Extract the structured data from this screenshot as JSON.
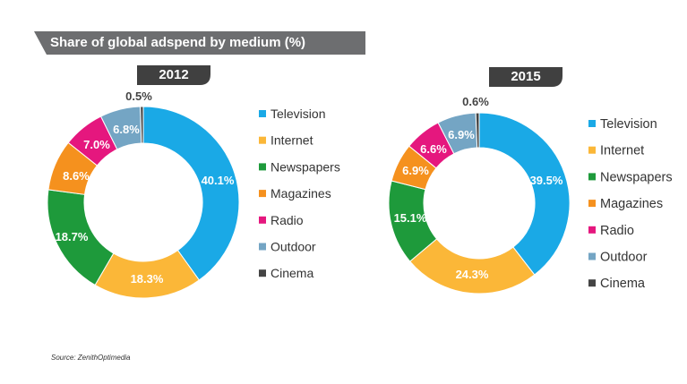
{
  "header": {
    "title": "Share of global adspend by medium (%)",
    "banner_color": "#6d6e70"
  },
  "source": "Source: ZenithOptimedia",
  "chart_data": [
    {
      "type": "pie",
      "variant": "donut",
      "title": "2012",
      "categories": [
        "Television",
        "Internet",
        "Newspapers",
        "Magazines",
        "Radio",
        "Outdoor",
        "Cinema"
      ],
      "values": [
        40.1,
        18.3,
        18.7,
        8.6,
        7.0,
        6.8,
        0.5
      ],
      "labels": [
        "40.1%",
        "18.3%",
        "18.7%",
        "8.6%",
        "7.0%",
        "6.8%",
        "0.5%"
      ],
      "colors": [
        "#1aa9e6",
        "#fbb738",
        "#1e9a3b",
        "#f5911e",
        "#e5177e",
        "#74a5c4",
        "#444444"
      ],
      "legend": "right"
    },
    {
      "type": "pie",
      "variant": "donut",
      "title": "2015",
      "categories": [
        "Television",
        "Internet",
        "Newspapers",
        "Magazines",
        "Radio",
        "Outdoor",
        "Cinema"
      ],
      "values": [
        39.5,
        24.3,
        15.1,
        6.9,
        6.6,
        6.9,
        0.6
      ],
      "labels": [
        "39.5%",
        "24.3%",
        "15.1%",
        "6.9%",
        "6.6%",
        "6.9%",
        "0.6%"
      ],
      "colors": [
        "#1aa9e6",
        "#fbb738",
        "#1e9a3b",
        "#f5911e",
        "#e5177e",
        "#74a5c4",
        "#444444"
      ],
      "legend": "right"
    }
  ]
}
